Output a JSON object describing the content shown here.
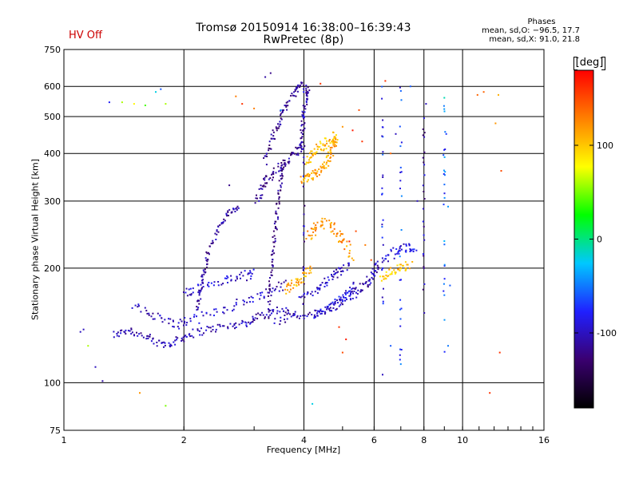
{
  "header": {
    "title_line1": "Tromsø 20150914 16:38:00–16:39:43",
    "title_line2": "RwPretec (8p)",
    "hv_status": "HV Off",
    "hv_color": "#cc0000"
  },
  "stats": {
    "heading": "Phases",
    "line_o": "mean, sd,O: −96.5, 17.7",
    "line_x": "mean, sd,X:  91.0, 21.8"
  },
  "colorbar": {
    "unit": "[deg]",
    "range": [
      -180,
      180
    ],
    "ticks": [
      {
        "value": 100,
        "label": "100"
      },
      {
        "value": 0,
        "label": "0"
      },
      {
        "value": -100,
        "label": "-100"
      }
    ],
    "colors": [
      "#000000",
      "#3a0070",
      "#2020ff",
      "#00c8ff",
      "#00ff00",
      "#ffff00",
      "#ff8000",
      "#ff0000"
    ]
  },
  "chart_data": {
    "type": "scatter",
    "title": "Tromsø 20150914 16:38:00–16:39:43",
    "subtitle": "RwPretec (8p)",
    "xlabel": "Frequency [MHz]",
    "ylabel": "Stationary phase Virtual Height [km]",
    "x_scale": "log2",
    "y_scale": "log",
    "xlim": [
      1,
      16
    ],
    "ylim": [
      75,
      750
    ],
    "x_ticks": [
      {
        "value": 1,
        "label": "1"
      },
      {
        "value": 2,
        "label": "2"
      },
      {
        "value": 4,
        "label": "4"
      },
      {
        "value": 6,
        "label": "6"
      },
      {
        "value": 8,
        "label": "8"
      },
      {
        "value": 10,
        "label": "10"
      },
      {
        "value": 16,
        "label": "16"
      }
    ],
    "y_ticks": [
      {
        "value": 75,
        "label": "75"
      },
      {
        "value": 100,
        "label": "100"
      },
      {
        "value": 200,
        "label": "200"
      },
      {
        "value": 300,
        "label": "300"
      },
      {
        "value": 400,
        "label": "400"
      },
      {
        "value": 500,
        "label": "500"
      },
      {
        "value": 600,
        "label": "600"
      },
      {
        "value": 750,
        "label": "750"
      }
    ],
    "grid": true,
    "color_variable": "phase [deg]",
    "traces": [
      {
        "phase": -105,
        "spread": 0.03,
        "points": [
          [
            1.33,
            133
          ],
          [
            1.45,
            138
          ],
          [
            1.6,
            132
          ],
          [
            1.75,
            126
          ],
          [
            1.9,
            128
          ],
          [
            2.05,
            134
          ],
          [
            2.3,
            138
          ],
          [
            2.6,
            141
          ],
          [
            2.9,
            144
          ],
          [
            3.1,
            150
          ],
          [
            3.4,
            155
          ],
          [
            3.8,
            152
          ]
        ]
      },
      {
        "phase": -100,
        "spread": 0.035,
        "points": [
          [
            1.5,
            158
          ],
          [
            1.7,
            150
          ],
          [
            1.9,
            142
          ],
          [
            2.1,
            146
          ],
          [
            2.5,
            156
          ],
          [
            2.9,
            165
          ],
          [
            3.3,
            174
          ],
          [
            3.6,
            182
          ]
        ]
      },
      {
        "phase": -95,
        "spread": 0.035,
        "points": [
          [
            2.0,
            172
          ],
          [
            2.2,
            178
          ],
          [
            2.5,
            185
          ],
          [
            2.8,
            190
          ],
          [
            3.0,
            194
          ]
        ]
      },
      {
        "phase": -110,
        "spread": 0.02,
        "points": [
          [
            2.15,
            155
          ],
          [
            2.2,
            175
          ],
          [
            2.25,
            195
          ],
          [
            2.3,
            220
          ],
          [
            2.45,
            255
          ],
          [
            2.6,
            280
          ],
          [
            2.75,
            290
          ]
        ]
      },
      {
        "phase": -115,
        "spread": 0.03,
        "points": [
          [
            3.05,
            300
          ],
          [
            3.15,
            330
          ],
          [
            3.3,
            350
          ],
          [
            3.5,
            370
          ],
          [
            3.75,
            390
          ],
          [
            3.9,
            420
          ]
        ]
      },
      {
        "phase": -120,
        "spread": 0.02,
        "points": [
          [
            3.25,
            150
          ],
          [
            3.3,
            185
          ],
          [
            3.35,
            220
          ],
          [
            3.4,
            260
          ],
          [
            3.45,
            300
          ],
          [
            3.5,
            345
          ],
          [
            3.55,
            380
          ]
        ]
      },
      {
        "phase": -115,
        "spread": 0.025,
        "points": [
          [
            3.2,
            380
          ],
          [
            3.3,
            430
          ],
          [
            3.45,
            480
          ],
          [
            3.6,
            530
          ],
          [
            3.8,
            580
          ],
          [
            3.95,
            620
          ]
        ]
      },
      {
        "phase": -110,
        "spread": 0.025,
        "points": [
          [
            3.9,
            400
          ],
          [
            3.95,
            450
          ],
          [
            4.0,
            500
          ],
          [
            4.05,
            560
          ],
          [
            4.1,
            610
          ]
        ]
      },
      {
        "phase": -105,
        "spread": 0.03,
        "points": [
          [
            3.4,
            145
          ],
          [
            3.8,
            150
          ],
          [
            4.3,
            152
          ],
          [
            4.8,
            158
          ],
          [
            5.2,
            168
          ],
          [
            5.5,
            175
          ],
          [
            5.8,
            185
          ],
          [
            6.0,
            195
          ],
          [
            6.2,
            205
          ]
        ]
      },
      {
        "phase": -100,
        "spread": 0.03,
        "points": [
          [
            3.9,
            165
          ],
          [
            4.3,
            176
          ],
          [
            4.6,
            186
          ],
          [
            4.9,
            195
          ],
          [
            5.2,
            205
          ]
        ]
      },
      {
        "phase": -90,
        "spread": 0.03,
        "points": [
          [
            4.2,
            148
          ],
          [
            4.5,
            154
          ],
          [
            4.8,
            162
          ],
          [
            5.1,
            170
          ],
          [
            5.4,
            180
          ]
        ]
      },
      {
        "phase": 115,
        "spread": 0.03,
        "points": [
          [
            3.95,
            340
          ],
          [
            4.1,
            345
          ],
          [
            4.3,
            355
          ],
          [
            4.5,
            370
          ],
          [
            4.65,
            395
          ],
          [
            4.75,
            420
          ],
          [
            4.85,
            440
          ]
        ]
      },
      {
        "phase": 105,
        "spread": 0.035,
        "points": [
          [
            4.05,
            380
          ],
          [
            4.2,
            400
          ],
          [
            4.4,
            415
          ],
          [
            4.6,
            430
          ],
          [
            4.8,
            450
          ]
        ]
      },
      {
        "phase": 110,
        "spread": 0.035,
        "points": [
          [
            3.6,
            175
          ],
          [
            3.8,
            182
          ],
          [
            4.0,
            190
          ],
          [
            4.2,
            200
          ]
        ]
      },
      {
        "phase": 120,
        "spread": 0.04,
        "points": [
          [
            4.1,
            240
          ],
          [
            4.3,
            255
          ],
          [
            4.5,
            265
          ],
          [
            4.8,
            255
          ],
          [
            5.0,
            235
          ],
          [
            5.3,
            215
          ]
        ]
      },
      {
        "phase": 100,
        "spread": 0.03,
        "points": [
          [
            6.2,
            185
          ],
          [
            6.6,
            195
          ],
          [
            7.0,
            200
          ],
          [
            7.4,
            205
          ]
        ]
      },
      {
        "phase": -90,
        "spread": 0.04,
        "points": [
          [
            6.3,
            210
          ],
          [
            6.8,
            220
          ],
          [
            7.2,
            225
          ],
          [
            7.6,
            230
          ]
        ]
      }
    ],
    "columns": [
      {
        "x": 4.0,
        "y": [
          150,
          650
        ],
        "phase": -105
      },
      {
        "x": 6.3,
        "y": [
          150,
          650
        ],
        "phase": -80
      },
      {
        "x": 7.0,
        "y": [
          110,
          600
        ],
        "phase": -70
      },
      {
        "x": 9.0,
        "y": [
          120,
          560
        ],
        "phase": -60
      },
      {
        "x": 8.0,
        "y": [
          150,
          500
        ],
        "phase": -110
      }
    ],
    "scatter": [
      [
        1.1,
        136,
        -100
      ],
      [
        1.12,
        138,
        -100
      ],
      [
        1.2,
        110,
        -100
      ],
      [
        1.25,
        101,
        -110
      ],
      [
        1.15,
        125,
        60
      ],
      [
        1.3,
        545,
        -80
      ],
      [
        1.4,
        545,
        60
      ],
      [
        1.5,
        540,
        80
      ],
      [
        1.6,
        535,
        40
      ],
      [
        1.7,
        580,
        -20
      ],
      [
        1.75,
        590,
        -60
      ],
      [
        1.8,
        540,
        60
      ],
      [
        1.55,
        94,
        120
      ],
      [
        1.8,
        87,
        50
      ],
      [
        2.7,
        565,
        130
      ],
      [
        2.8,
        540,
        160
      ],
      [
        3.0,
        525,
        130
      ],
      [
        3.2,
        635,
        -110
      ],
      [
        3.3,
        650,
        -120
      ],
      [
        3.5,
        520,
        -40
      ],
      [
        2.6,
        330,
        -120
      ],
      [
        4.4,
        610,
        160
      ],
      [
        5.5,
        520,
        150
      ],
      [
        5.0,
        470,
        120
      ],
      [
        5.3,
        460,
        170
      ],
      [
        5.6,
        430,
        160
      ],
      [
        6.4,
        620,
        160
      ],
      [
        6.8,
        450,
        -100
      ],
      [
        6.6,
        400,
        140
      ],
      [
        7.4,
        600,
        -60
      ],
      [
        7.7,
        300,
        -100
      ],
      [
        8.1,
        540,
        -100
      ],
      [
        9.0,
        560,
        -10
      ],
      [
        9.1,
        450,
        -70
      ],
      [
        9.2,
        290,
        -40
      ],
      [
        9.3,
        180,
        -60
      ],
      [
        9.2,
        125,
        -50
      ],
      [
        10.9,
        570,
        140
      ],
      [
        11.3,
        580,
        140
      ],
      [
        12.3,
        570,
        110
      ],
      [
        12.1,
        480,
        120
      ],
      [
        12.5,
        360,
        150
      ],
      [
        12.4,
        120,
        160
      ],
      [
        11.7,
        94,
        160
      ],
      [
        4.2,
        88,
        -20
      ],
      [
        6.3,
        105,
        -100
      ],
      [
        6.6,
        125,
        -60
      ],
      [
        5.0,
        120,
        150
      ],
      [
        5.1,
        130,
        170
      ],
      [
        4.9,
        140,
        160
      ],
      [
        5.2,
        235,
        170
      ],
      [
        5.4,
        250,
        150
      ],
      [
        5.7,
        230,
        130
      ],
      [
        5.9,
        210,
        150
      ]
    ]
  }
}
